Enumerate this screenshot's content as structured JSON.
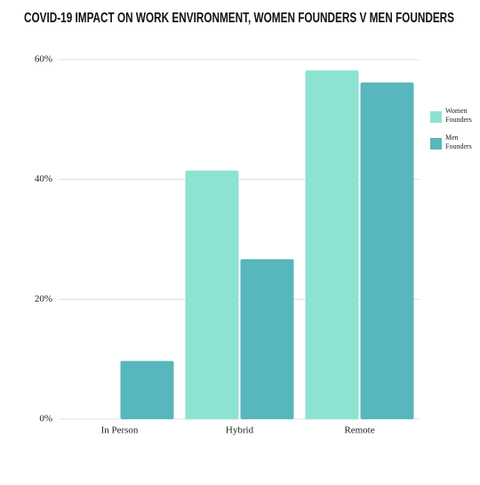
{
  "chart_data": {
    "type": "bar",
    "title": "COVID-19 IMPACT ON WORK ENVIRONMENT, WOMEN FOUNDERS V MEN FOUNDERS",
    "categories": [
      "In Person",
      "Hybrid",
      "Remote"
    ],
    "series": [
      {
        "name": "Women Founders",
        "color": "#8de3d1",
        "values": [
          0,
          41.5,
          58.2
        ]
      },
      {
        "name": "Men Founders",
        "color": "#57b7bc",
        "values": [
          9.7,
          26.7,
          56.2
        ]
      }
    ],
    "ylim": [
      0,
      60
    ],
    "yticks": [
      {
        "value": 0,
        "label": "0%"
      },
      {
        "value": 20,
        "label": "20%"
      },
      {
        "value": 40,
        "label": "40%"
      },
      {
        "value": 60,
        "label": "60%"
      }
    ],
    "grid": true,
    "legend": "right"
  }
}
